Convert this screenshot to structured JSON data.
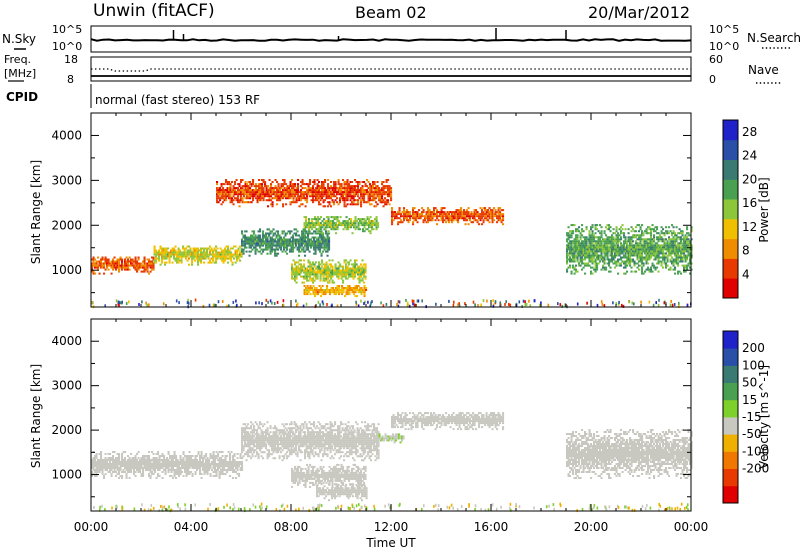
{
  "header": {
    "station": "Unwin  (fitACF)",
    "beam": "Beam 02",
    "date": "20/Mar/2012"
  },
  "top_panel": {
    "left_label": "N.Sky",
    "left_ticks": [
      "10^5",
      "10^0"
    ],
    "right_ticks": [
      "10^5",
      "10^0"
    ],
    "right_label": "N.Search"
  },
  "freq_panel": {
    "left_label_1": "Freq.",
    "left_label_2": "[MHz]",
    "left_ticks": [
      "18",
      "8"
    ],
    "right_ticks": [
      "60",
      "0"
    ],
    "right_label": "Nave"
  },
  "cpid": {
    "label": "CPID",
    "text": "normal (fast stereo) 153 RF"
  },
  "colors": {
    "power_scale": [
      "#1f22c8",
      "#2a4fa8",
      "#3a7a72",
      "#48a050",
      "#8cc63a",
      "#f0c000",
      "#f08c00",
      "#e83a00",
      "#e00000"
    ],
    "velocity_scale": [
      "#1f22c8",
      "#2a4fa8",
      "#3a7a72",
      "#48a050",
      "#7ed02a",
      "#c8c8c0",
      "#f0b000",
      "#f07800",
      "#e83a00",
      "#e00000"
    ],
    "ground_scatter": "#c8c8c0"
  },
  "chart_data": [
    {
      "type": "heatmap",
      "title": "",
      "xlabel": "Time UT",
      "ylabel": "Slant Range [km]",
      "x_ticks": [
        "00:00",
        "04:00",
        "08:00",
        "12:00",
        "16:00",
        "20:00",
        "00:00"
      ],
      "y_ticks": [
        "1000",
        "2000",
        "3000",
        "4000"
      ],
      "xlim_hours": [
        0,
        24
      ],
      "ylim_km": [
        180,
        4500
      ],
      "colorbar": {
        "label": "Power [dB]",
        "ticks": [
          "4",
          "8",
          "12",
          "16",
          "20",
          "24",
          "28"
        ],
        "range": [
          0,
          30
        ]
      },
      "regions": [
        {
          "t": [
            0.0,
            2.5
          ],
          "r": [
            900,
            1300
          ],
          "value": 6
        },
        {
          "t": [
            2.5,
            6.0
          ],
          "r": [
            1100,
            1550
          ],
          "value": 13
        },
        {
          "t": [
            6.0,
            9.5
          ],
          "r": [
            1300,
            1900
          ],
          "value": 20
        },
        {
          "t": [
            8.5,
            11.5
          ],
          "r": [
            1800,
            2200
          ],
          "value": 16
        },
        {
          "t": [
            8.0,
            11.0
          ],
          "r": [
            700,
            1200
          ],
          "value": 14
        },
        {
          "t": [
            8.5,
            11.0
          ],
          "r": [
            400,
            650
          ],
          "value": 10
        },
        {
          "t": [
            12.0,
            16.5
          ],
          "r": [
            2000,
            2400
          ],
          "value": 6
        },
        {
          "t": [
            19.0,
            24.0
          ],
          "r": [
            900,
            2000
          ],
          "value": 18
        },
        {
          "t": [
            5.0,
            12.0
          ],
          "r": [
            2400,
            3000
          ],
          "value": 5
        }
      ]
    },
    {
      "type": "heatmap",
      "title": "",
      "xlabel": "Time UT",
      "ylabel": "Slant Range [km]",
      "x_ticks": [
        "00:00",
        "04:00",
        "08:00",
        "12:00",
        "16:00",
        "20:00",
        "00:00"
      ],
      "y_ticks": [
        "1000",
        "2000",
        "3000",
        "4000"
      ],
      "xlim_hours": [
        0,
        24
      ],
      "ylim_km": [
        180,
        4500
      ],
      "colorbar": {
        "label": "Velocity [m s^-1]",
        "ticks": [
          "200",
          "100",
          "50",
          "15",
          "-15",
          "-50",
          "-100",
          "-200"
        ],
        "range": [
          -250,
          250
        ]
      },
      "regions": [
        {
          "t": [
            0.0,
            6.0
          ],
          "r": [
            900,
            1500
          ],
          "value": 0
        },
        {
          "t": [
            6.0,
            11.5
          ],
          "r": [
            1300,
            2200
          ],
          "value": 0
        },
        {
          "t": [
            8.0,
            11.0
          ],
          "r": [
            700,
            1200
          ],
          "value": 0
        },
        {
          "t": [
            9.0,
            11.0
          ],
          "r": [
            400,
            800
          ],
          "value": -40
        },
        {
          "t": [
            12.0,
            16.5
          ],
          "r": [
            2000,
            2400
          ],
          "value": 0
        },
        {
          "t": [
            19.0,
            24.0
          ],
          "r": [
            900,
            2000
          ],
          "value": 0
        },
        {
          "t": [
            11.5,
            12.5
          ],
          "r": [
            1700,
            1900
          ],
          "value": 30
        }
      ]
    }
  ]
}
